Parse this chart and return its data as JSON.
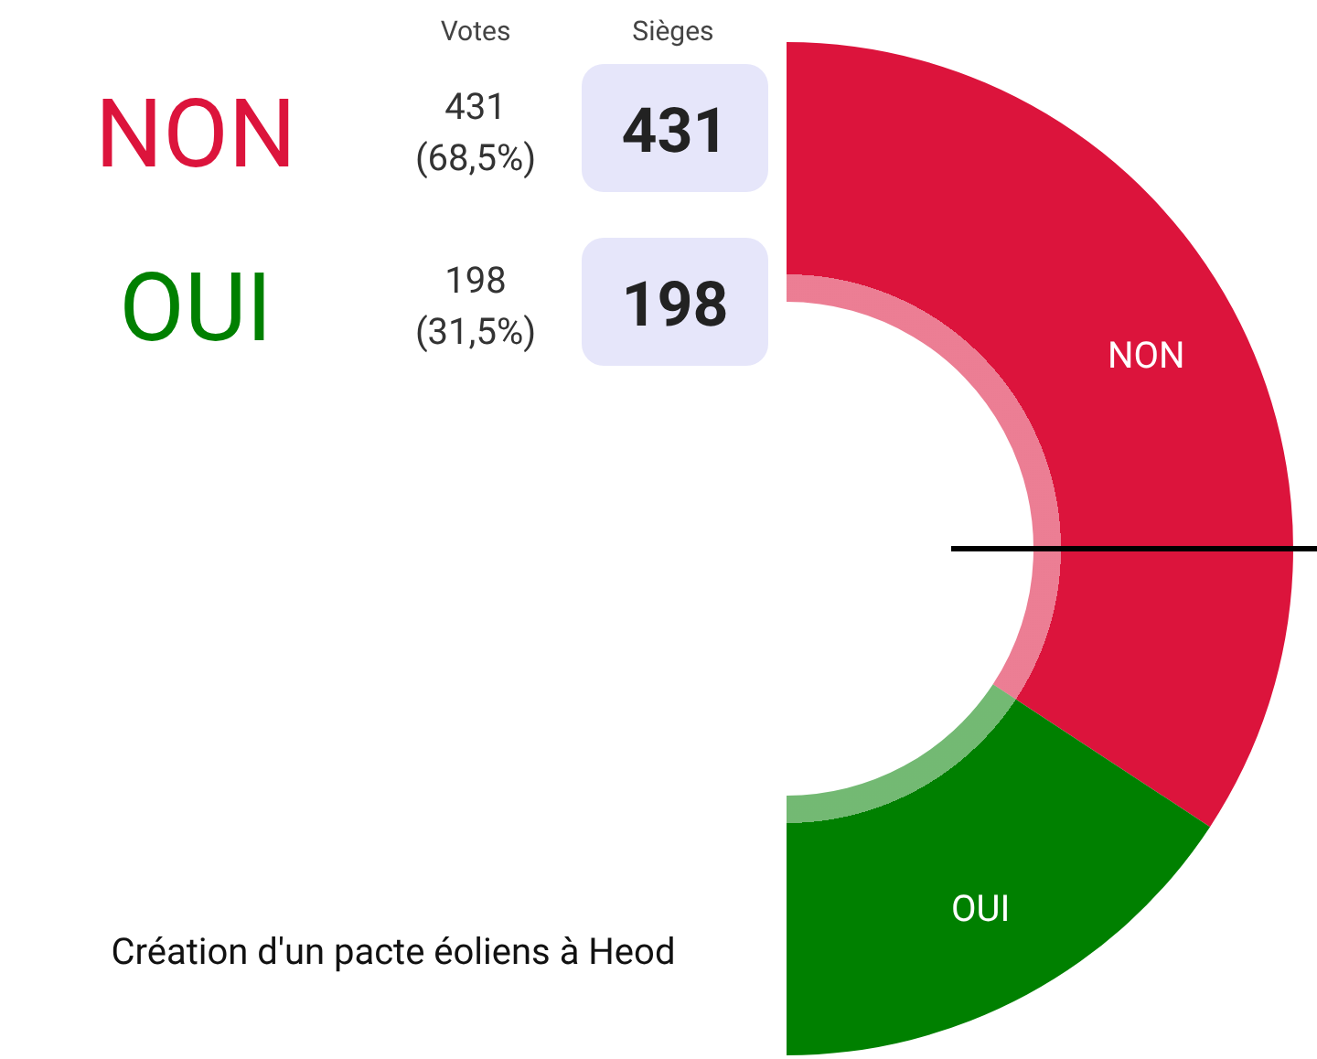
{
  "chart_data": {
    "type": "donut",
    "title": "Création d'un pacte éoliens à Heod",
    "categories": [
      "NON",
      "OUI"
    ],
    "values": [
      68.5,
      31.5
    ],
    "colors": [
      "#dc143c",
      "#008000"
    ],
    "annotations": [
      "Votes",
      "Sièges",
      "431 (68,5%)",
      "431",
      "198 (31,5%)",
      "198"
    ]
  }
}
